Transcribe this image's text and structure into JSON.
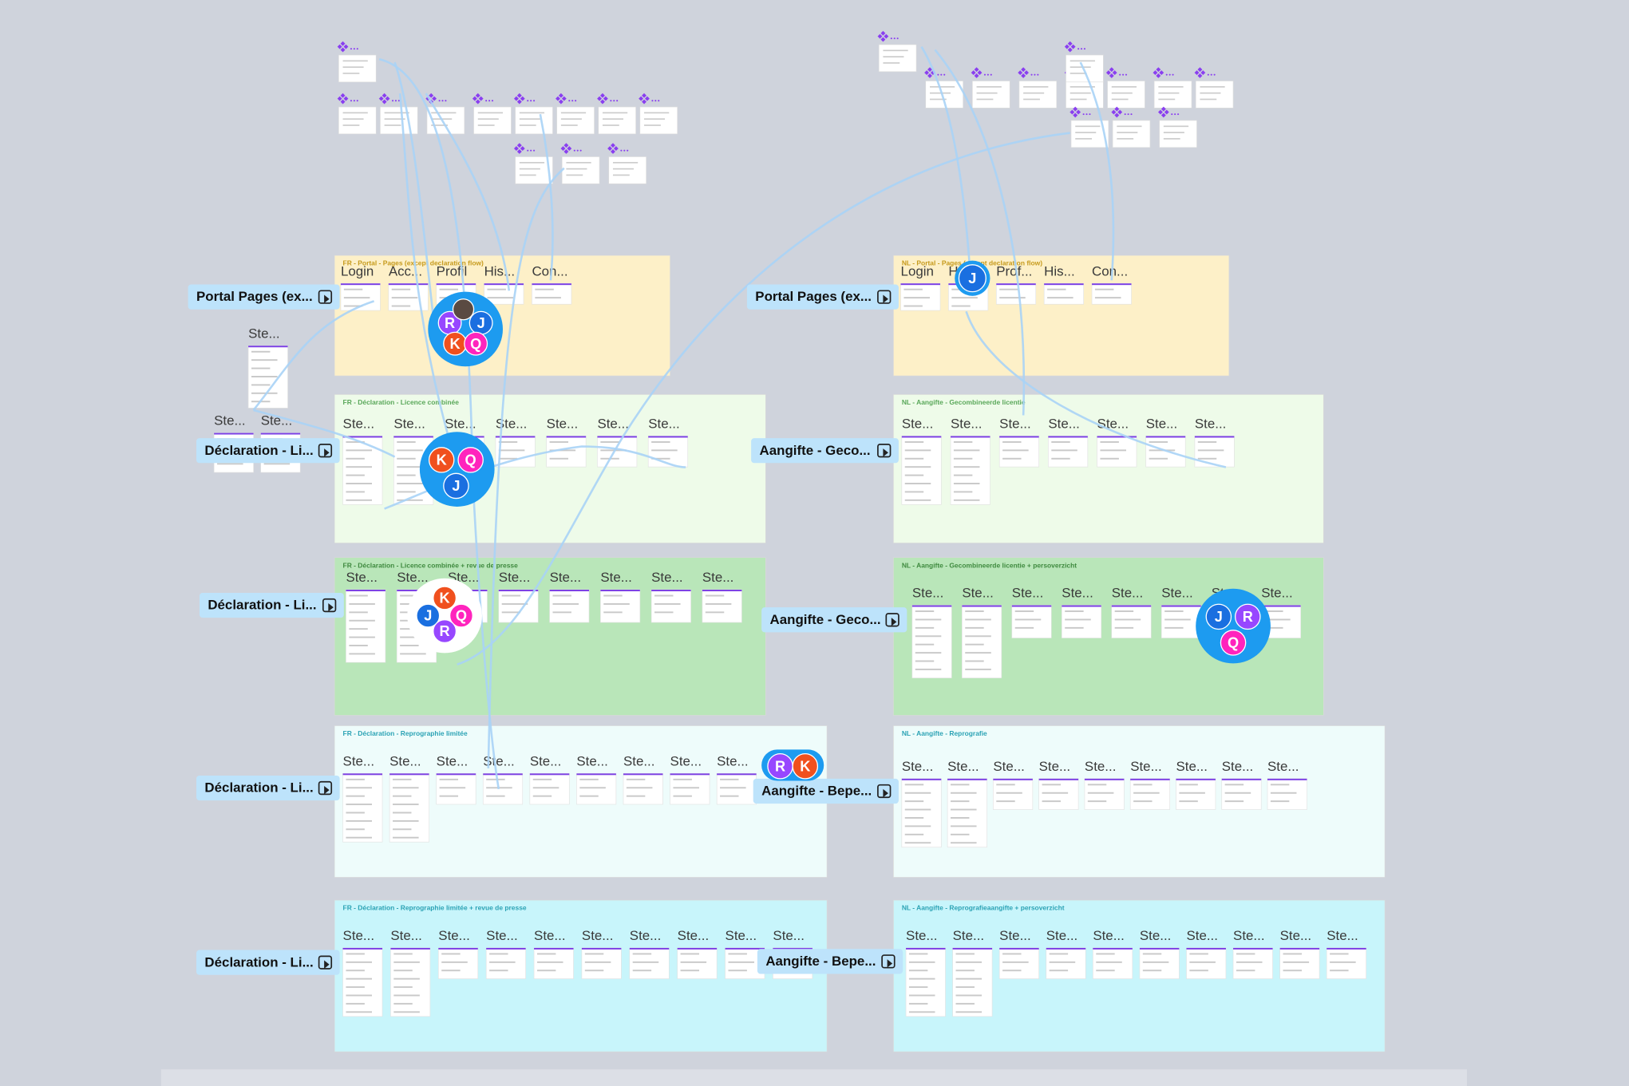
{
  "sections": [
    {
      "title": "FR - Portal - Pages (except declaration flow)",
      "flow": "Portal Pages (ex...",
      "frames": [
        "Login",
        "Acc...",
        "Profil",
        "His...",
        "Con..."
      ]
    },
    {
      "title": "FR - Déclaration - Licence combinée",
      "flow": "Déclaration - Li...",
      "frames": [
        "Ste...",
        "Ste...",
        "Ste...",
        "Ste...",
        "Ste...",
        "Ste...",
        "Ste..."
      ]
    },
    {
      "title": "FR - Déclaration - Licence combinée + revue de presse",
      "flow": "Déclaration - Li...",
      "frames": [
        "Ste...",
        "Ste...",
        "Ste...",
        "Ste...",
        "Ste...",
        "Ste...",
        "Ste...",
        "Ste..."
      ]
    },
    {
      "title": "FR - Déclaration - Reprographie limitée",
      "flow": "Déclaration - Li...",
      "frames": [
        "Ste...",
        "Ste...",
        "Ste...",
        "Ste...",
        "Ste...",
        "Ste...",
        "Ste...",
        "Ste...",
        "Ste..."
      ]
    },
    {
      "title": "FR - Déclaration - Reprographie limitée + revue de presse",
      "flow": "Déclaration - Li...",
      "frames": [
        "Ste...",
        "Ste...",
        "Ste...",
        "Ste...",
        "Ste...",
        "Ste...",
        "Ste...",
        "Ste...",
        "Ste...",
        "Ste..."
      ]
    },
    {
      "title": "NL - Portal - Pages (except declaration flow)",
      "flow": "Portal Pages (ex...",
      "frames": [
        "Login",
        "H...",
        "Prof...",
        "His...",
        "Con..."
      ]
    },
    {
      "title": "NL - Aangifte - Gecombineerde licentie",
      "flow": "Aangifte - Geco...",
      "frames": [
        "Ste...",
        "Ste...",
        "Ste...",
        "Ste...",
        "Ste...",
        "Ste...",
        "Ste..."
      ]
    },
    {
      "title": "NL - Aangifte - Gecombineerde licentie + persoverzicht",
      "flow": "Aangifte - Geco...",
      "frames": [
        "Ste...",
        "Ste...",
        "Ste...",
        "Ste...",
        "Ste...",
        "Ste...",
        "Ste...",
        "Ste..."
      ]
    },
    {
      "title": "NL - Aangifte - Reprografie",
      "flow": "Aangifte - Bepe...",
      "frames": [
        "Ste...",
        "Ste...",
        "Ste...",
        "Ste...",
        "Ste...",
        "Ste...",
        "Ste...",
        "Ste...",
        "Ste..."
      ]
    },
    {
      "title": "NL - Aangifte - Reprografieaangifte + persoverzicht",
      "flow": "Aangifte - Bepe...",
      "frames": [
        "Ste...",
        "Ste...",
        "Ste...",
        "Ste...",
        "Ste...",
        "Ste...",
        "Ste...",
        "Ste...",
        "Ste...",
        "Ste..."
      ]
    }
  ],
  "loose_frames": [
    "Ste...",
    "Ste...",
    "Ste..."
  ],
  "avatars": [
    {
      "members": [
        "R",
        "J",
        "K",
        "Q"
      ]
    },
    {
      "members": [
        "K",
        "Q",
        "J"
      ]
    },
    {
      "members": [
        "K",
        "J",
        "Q",
        "R"
      ]
    },
    {
      "members": [
        "R",
        "K"
      ]
    },
    {
      "members": [
        "J"
      ]
    },
    {
      "members": [
        "J",
        "R",
        "Q"
      ]
    }
  ]
}
